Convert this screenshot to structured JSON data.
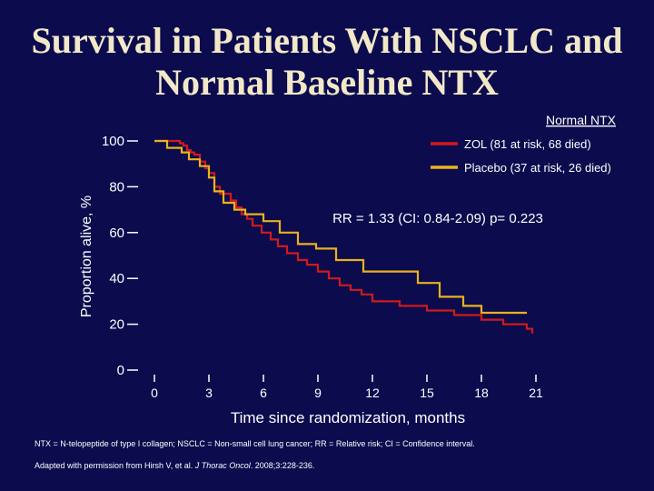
{
  "page": {
    "title_line1": "Survival in Patients With NSCLC and",
    "title_line2": "Normal Baseline NTX",
    "footnote": "NTX = N-telopeptide of type I collagen; NSCLC = Non-small cell lung cancer; RR = Relative risk; CI = Confidence interval.",
    "source_prefix": "Adapted with permission from Hirsh V, et al. ",
    "source_journal": "J Thorac Oncol",
    "source_suffix": ". 2008;3:228-236."
  },
  "colors": {
    "background": "#0b0b4e",
    "title": "#f2e8c8",
    "zol": "#d01a1a",
    "placebo": "#e8b21e",
    "axis": "#ffffff"
  },
  "chart_data": {
    "type": "line",
    "title": "",
    "legend_title": "Normal NTX",
    "legend_placement": "top-right",
    "xlabel": "Time since randomization, months",
    "ylabel": "Proportion alive, %",
    "xlim": [
      0,
      21
    ],
    "ylim": [
      0,
      100
    ],
    "x_ticks": [
      0,
      3,
      6,
      9,
      12,
      15,
      18,
      21
    ],
    "y_ticks": [
      0,
      20,
      40,
      60,
      80,
      100
    ],
    "grid": false,
    "annotation": "RR = 1.33 (CI: 0.84-2.09) p= 0.223",
    "series": [
      {
        "name": "ZOL (81 at risk, 68 died)",
        "color": "#d01a1a",
        "points": [
          [
            0,
            100
          ],
          [
            1.4,
            100
          ],
          [
            1.4,
            99
          ],
          [
            1.6,
            99
          ],
          [
            1.6,
            98
          ],
          [
            1.8,
            98
          ],
          [
            1.8,
            96
          ],
          [
            2.0,
            96
          ],
          [
            2.0,
            95
          ],
          [
            2.2,
            95
          ],
          [
            2.2,
            94
          ],
          [
            2.5,
            94
          ],
          [
            2.5,
            91
          ],
          [
            2.8,
            91
          ],
          [
            2.8,
            88
          ],
          [
            3.0,
            88
          ],
          [
            3.0,
            86
          ],
          [
            3.3,
            86
          ],
          [
            3.3,
            80
          ],
          [
            3.6,
            80
          ],
          [
            3.6,
            77
          ],
          [
            4.2,
            77
          ],
          [
            4.2,
            74
          ],
          [
            4.5,
            74
          ],
          [
            4.5,
            71
          ],
          [
            4.8,
            71
          ],
          [
            4.8,
            68
          ],
          [
            5.1,
            68
          ],
          [
            5.1,
            66
          ],
          [
            5.4,
            66
          ],
          [
            5.4,
            63
          ],
          [
            5.9,
            63
          ],
          [
            5.9,
            60
          ],
          [
            6.4,
            60
          ],
          [
            6.4,
            57
          ],
          [
            6.8,
            57
          ],
          [
            6.8,
            54
          ],
          [
            7.3,
            54
          ],
          [
            7.3,
            51
          ],
          [
            7.9,
            51
          ],
          [
            7.9,
            48
          ],
          [
            8.4,
            48
          ],
          [
            8.4,
            46
          ],
          [
            9.0,
            46
          ],
          [
            9.0,
            43
          ],
          [
            9.6,
            43
          ],
          [
            9.6,
            40
          ],
          [
            10.2,
            40
          ],
          [
            10.2,
            37
          ],
          [
            10.8,
            37
          ],
          [
            10.8,
            35
          ],
          [
            11.4,
            35
          ],
          [
            11.4,
            33
          ],
          [
            12.0,
            33
          ],
          [
            12.0,
            30
          ],
          [
            13.5,
            30
          ],
          [
            13.5,
            28
          ],
          [
            15.0,
            28
          ],
          [
            15.0,
            26
          ],
          [
            16.5,
            26
          ],
          [
            16.5,
            24
          ],
          [
            18.0,
            24
          ],
          [
            18.0,
            22
          ],
          [
            19.2,
            22
          ],
          [
            19.2,
            20
          ],
          [
            20.5,
            20
          ],
          [
            20.5,
            18
          ],
          [
            20.8,
            18
          ],
          [
            20.8,
            16
          ]
        ]
      },
      {
        "name": "Placebo (37 at risk, 26 died)",
        "color": "#e8b21e",
        "points": [
          [
            0,
            100
          ],
          [
            0.7,
            100
          ],
          [
            0.7,
            97
          ],
          [
            1.5,
            97
          ],
          [
            1.5,
            95
          ],
          [
            1.9,
            95
          ],
          [
            1.9,
            92
          ],
          [
            2.5,
            92
          ],
          [
            2.5,
            89
          ],
          [
            3.0,
            89
          ],
          [
            3.0,
            84
          ],
          [
            3.3,
            84
          ],
          [
            3.3,
            78
          ],
          [
            3.8,
            78
          ],
          [
            3.8,
            73
          ],
          [
            4.4,
            73
          ],
          [
            4.4,
            70
          ],
          [
            5.0,
            70
          ],
          [
            5.0,
            68
          ],
          [
            6.0,
            68
          ],
          [
            6.0,
            65
          ],
          [
            6.9,
            65
          ],
          [
            6.9,
            60
          ],
          [
            7.9,
            60
          ],
          [
            7.9,
            55
          ],
          [
            8.9,
            55
          ],
          [
            8.9,
            53
          ],
          [
            10.0,
            53
          ],
          [
            10.0,
            48
          ],
          [
            11.5,
            48
          ],
          [
            11.5,
            43
          ],
          [
            14.5,
            43
          ],
          [
            14.5,
            38
          ],
          [
            15.7,
            38
          ],
          [
            15.7,
            32
          ],
          [
            17.0,
            32
          ],
          [
            17.0,
            28
          ],
          [
            18.0,
            28
          ],
          [
            18.0,
            25
          ],
          [
            20.5,
            25
          ]
        ]
      }
    ]
  }
}
